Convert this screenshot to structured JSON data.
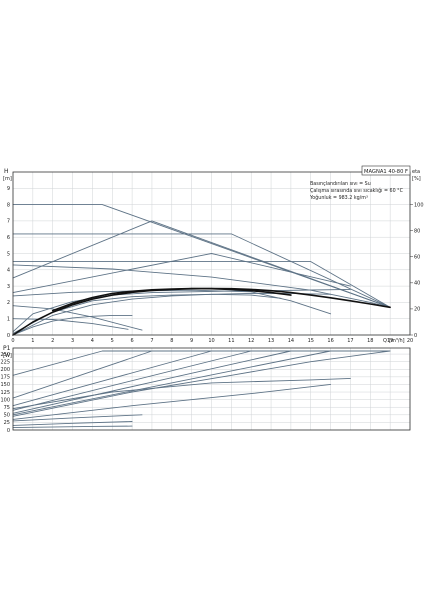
{
  "pump_model": "MAGNA1 40-80 F",
  "info": {
    "line1": "Basınçlandırılan sıvı = Su",
    "line2": "Çalışma sırasında sıvı sıcaklığı = 60 °C",
    "line3": "Yoğunluk = 983.2 kg/m³"
  },
  "colors": {
    "grid": "#cfd3d6",
    "curve": "#5e7386",
    "bold": "#111111",
    "axis": "#333333"
  },
  "chart_data": [
    {
      "type": "line",
      "title": "",
      "ylabel": "H",
      "yunit": "[m]",
      "xlabel": "Q",
      "xunit": "[m³/h]",
      "y2label": "eta",
      "y2unit": "[%]",
      "xlim": [
        0,
        20
      ],
      "ylim": [
        0,
        10
      ],
      "y2lim": [
        0,
        125
      ],
      "x_ticks": [
        "0",
        "1",
        "2",
        "3",
        "4",
        "5",
        "6",
        "7",
        "8",
        "9",
        "10",
        "11",
        "12",
        "13",
        "14",
        "15",
        "16",
        "17",
        "18",
        "19",
        "20"
      ],
      "y_ticks": [
        "0",
        "1",
        "2",
        "3",
        "4",
        "5",
        "6",
        "7",
        "8",
        "9"
      ],
      "y2_ticks": [
        "0",
        "20",
        "40",
        "60",
        "80",
        "100"
      ],
      "grid": true,
      "series": [
        {
          "style": "curve",
          "x": [
            0,
            4.5,
            19
          ],
          "y": [
            8,
            8,
            1.7
          ]
        },
        {
          "style": "curve",
          "x": [
            0,
            11,
            19
          ],
          "y": [
            6.2,
            6.2,
            1.7
          ]
        },
        {
          "style": "curve",
          "x": [
            0,
            7,
            19
          ],
          "y": [
            3.5,
            7,
            1.7
          ]
        },
        {
          "style": "curve",
          "x": [
            0,
            15,
            19
          ],
          "y": [
            4.5,
            4.5,
            1.7
          ]
        },
        {
          "style": "curve",
          "x": [
            0,
            5,
            10,
            15,
            18,
            19
          ],
          "y": [
            4.3,
            4.05,
            3.55,
            2.75,
            2,
            1.7
          ]
        },
        {
          "style": "curve",
          "x": [
            0,
            10,
            17
          ],
          "y": [
            2.6,
            5,
            3
          ]
        },
        {
          "style": "curve",
          "x": [
            0,
            1,
            3,
            5,
            7,
            9,
            11,
            13,
            15,
            17
          ],
          "y": [
            0.2,
            1.3,
            2.05,
            2.45,
            2.6,
            2.65,
            2.7,
            2.72,
            2.76,
            2.8
          ]
        },
        {
          "style": "curve",
          "x": [
            0,
            3,
            6,
            9,
            12,
            14,
            16
          ],
          "y": [
            2.4,
            2.62,
            2.7,
            2.75,
            2.65,
            2.1,
            1.3
          ]
        },
        {
          "style": "curve",
          "x": [
            0,
            2,
            4,
            6,
            8,
            10,
            12,
            13.5
          ],
          "y": [
            0.1,
            1.4,
            2.1,
            2.35,
            2.45,
            2.5,
            2.45,
            2.25
          ]
        },
        {
          "style": "curve",
          "x": [
            0,
            2,
            4,
            6,
            8,
            10,
            12,
            14,
            16
          ],
          "y": [
            0,
            1.2,
            1.85,
            2.2,
            2.4,
            2.5,
            2.55,
            2.55,
            2.5
          ]
        },
        {
          "style": "curve",
          "x": [
            0,
            2,
            4,
            6.5
          ],
          "y": [
            1.8,
            1.6,
            1.1,
            0.3
          ]
        },
        {
          "style": "curve",
          "x": [
            0,
            2,
            4,
            5.8
          ],
          "y": [
            1,
            0.95,
            0.7,
            0.35
          ]
        },
        {
          "style": "curve",
          "x": [
            0,
            1,
            2,
            3,
            4,
            5,
            6
          ],
          "y": [
            0,
            0.5,
            0.85,
            1.05,
            1.15,
            1.2,
            1.2
          ]
        },
        {
          "style": "bold",
          "x": [
            0,
            1,
            2,
            3,
            4,
            5,
            6,
            7,
            8,
            9,
            10,
            11,
            12,
            13,
            14,
            15,
            16,
            17,
            18,
            19
          ],
          "y": [
            0,
            0.8,
            1.4,
            1.85,
            2.2,
            2.45,
            2.62,
            2.73,
            2.8,
            2.84,
            2.85,
            2.84,
            2.8,
            2.72,
            2.6,
            2.45,
            2.28,
            2.1,
            1.9,
            1.7
          ]
        },
        {
          "style": "bold",
          "x": [
            2,
            3,
            4,
            5,
            6,
            7,
            8,
            9,
            10,
            11,
            12,
            13,
            14
          ],
          "y": [
            1.5,
            1.95,
            2.3,
            2.55,
            2.68,
            2.77,
            2.82,
            2.85,
            2.84,
            2.8,
            2.72,
            2.6,
            2.45
          ]
        }
      ]
    },
    {
      "type": "line",
      "title": "",
      "ylabel": "P1",
      "yunit": "[W]",
      "xlim": [
        0,
        20
      ],
      "ylim": [
        0,
        270
      ],
      "y_ticks": [
        "0",
        "25",
        "50",
        "75",
        "100",
        "125",
        "150",
        "175",
        "200",
        "225",
        "250"
      ],
      "grid": true,
      "series": [
        {
          "style": "curve",
          "x": [
            0,
            4.5,
            19
          ],
          "y": [
            180,
            260,
            260
          ]
        },
        {
          "style": "curve",
          "x": [
            0,
            7,
            19
          ],
          "y": [
            105,
            260,
            260
          ]
        },
        {
          "style": "curve",
          "x": [
            0,
            10,
            19
          ],
          "y": [
            80,
            260,
            260
          ]
        },
        {
          "style": "curve",
          "x": [
            0,
            12,
            19
          ],
          "y": [
            65,
            260,
            260
          ]
        },
        {
          "style": "curve",
          "x": [
            0,
            14,
            19
          ],
          "y": [
            55,
            260,
            260
          ]
        },
        {
          "style": "curve",
          "x": [
            0,
            16,
            19
          ],
          "y": [
            50,
            260,
            260
          ]
        },
        {
          "style": "curve",
          "x": [
            0,
            6,
            11,
            15,
            19
          ],
          "y": [
            45,
            125,
            180,
            225,
            260
          ]
        },
        {
          "style": "curve",
          "x": [
            0,
            5,
            10,
            15,
            17
          ],
          "y": [
            70,
            125,
            155,
            165,
            170
          ]
        },
        {
          "style": "curve",
          "x": [
            0,
            6,
            12,
            16
          ],
          "y": [
            35,
            80,
            120,
            150
          ]
        },
        {
          "style": "curve",
          "x": [
            0,
            3,
            6.5
          ],
          "y": [
            30,
            40,
            50
          ]
        },
        {
          "style": "curve",
          "x": [
            0,
            3,
            6
          ],
          "y": [
            15,
            22,
            28
          ]
        },
        {
          "style": "curve",
          "x": [
            0,
            4,
            6
          ],
          "y": [
            8,
            12,
            13
          ]
        }
      ]
    }
  ]
}
